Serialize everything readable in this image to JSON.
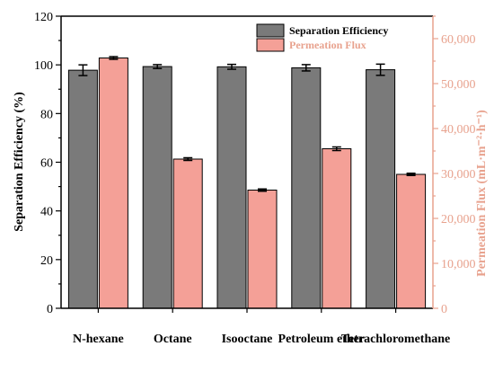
{
  "chart_data": {
    "type": "bar",
    "categories": [
      "N-hexane",
      "Octane",
      "Isooctane",
      "Petroleum ether",
      "Tetrachloromethane"
    ],
    "series": [
      {
        "name": "Separation Efficiency",
        "axis": "left",
        "values": [
          97.8,
          99.3,
          99.2,
          98.8,
          98.0
        ],
        "error": [
          2.2,
          0.8,
          1.0,
          1.3,
          2.3
        ],
        "color": "#7a7a7a"
      },
      {
        "name": "Permeation Flux",
        "axis": "right",
        "values": [
          55700,
          33200,
          26300,
          35500,
          29800
        ],
        "error": [
          300,
          300,
          250,
          400,
          250
        ],
        "color": "#f4a097"
      }
    ],
    "ylabel": "Separation Efficiency (%)",
    "ylim": [
      0,
      120
    ],
    "yticks": [
      "0",
      "20",
      "40",
      "60",
      "80",
      "100",
      "120"
    ],
    "y2label": "Permeation Flux (mL·m⁻²·h⁻¹)",
    "y2lim": [
      0,
      65000
    ],
    "y2ticks": [
      "0",
      "10,000",
      "20,000",
      "30,000",
      "40,000",
      "50,000",
      "60,000"
    ],
    "legend_position": "top-right",
    "colors": {
      "left_axis": "#000000",
      "right_axis": "#e8a28e",
      "efficiency_bar": "#7a7a7a",
      "flux_bar": "#f4a097"
    }
  }
}
